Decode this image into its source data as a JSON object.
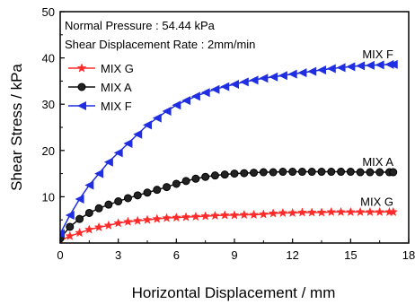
{
  "chart_data": {
    "type": "line",
    "xlabel": "Horizontal Displacement / mm",
    "ylabel": "Shear Stress / kPa",
    "xlim": [
      0,
      18
    ],
    "ylim": [
      0,
      50
    ],
    "xticks": [
      0,
      3,
      6,
      9,
      12,
      15,
      18
    ],
    "yticks": [
      10,
      20,
      30,
      40,
      50
    ],
    "annotations": [
      "Normal Pressure  : 54.44 kPa",
      "Shear Displacement Rate : 2mm/min"
    ],
    "legend_position": "upper-left",
    "grid": false,
    "series": [
      {
        "name": "MIX  G",
        "end_label": "MIX  G",
        "color": "#ff2a2a",
        "marker": "star",
        "x": [
          0,
          0.5,
          1,
          1.5,
          2,
          2.5,
          3,
          3.5,
          4,
          4.5,
          5,
          5.5,
          6,
          6.5,
          7,
          7.5,
          8,
          8.5,
          9,
          9.5,
          10,
          10.5,
          11,
          11.5,
          12,
          12.5,
          13,
          13.5,
          14,
          14.5,
          15,
          15.5,
          16,
          16.5,
          17,
          17.2
        ],
        "y": [
          0.5,
          1.5,
          2.2,
          2.9,
          3.4,
          3.8,
          4.3,
          4.6,
          4.8,
          5.0,
          5.2,
          5.4,
          5.5,
          5.6,
          5.7,
          5.8,
          5.9,
          6.0,
          6.0,
          6.1,
          6.1,
          6.2,
          6.4,
          6.5,
          6.5,
          6.6,
          6.6,
          6.6,
          6.7,
          6.7,
          6.7,
          6.7,
          6.7,
          6.7,
          6.7,
          6.7
        ]
      },
      {
        "name": "MIX  A",
        "end_label": "MIX  A",
        "color": "#111111",
        "marker": "circle",
        "x": [
          0,
          0.5,
          1,
          1.5,
          2,
          2.5,
          3,
          3.5,
          4,
          4.5,
          5,
          5.5,
          6,
          6.5,
          7,
          7.5,
          8,
          8.5,
          9,
          9.5,
          10,
          10.5,
          11,
          11.5,
          12,
          12.5,
          13,
          13.5,
          14,
          14.5,
          15,
          15.5,
          16,
          16.5,
          17,
          17.2
        ],
        "y": [
          1.0,
          3.5,
          5.2,
          6.5,
          7.5,
          8.3,
          9.0,
          9.7,
          10.3,
          10.9,
          11.5,
          12.1,
          12.8,
          13.4,
          13.9,
          14.3,
          14.6,
          14.8,
          15.0,
          15.1,
          15.2,
          15.3,
          15.3,
          15.4,
          15.4,
          15.4,
          15.4,
          15.4,
          15.4,
          15.4,
          15.4,
          15.3,
          15.3,
          15.3,
          15.3,
          15.3
        ]
      },
      {
        "name": "MIX  F",
        "end_label": "MIX  F",
        "color": "#1f2ee0",
        "marker": "triangle-left",
        "x": [
          0,
          0.5,
          1,
          1.5,
          2,
          2.5,
          3,
          3.5,
          4,
          4.5,
          5,
          5.5,
          6,
          6.5,
          7,
          7.5,
          8,
          8.5,
          9,
          9.5,
          10,
          10.5,
          11,
          11.5,
          12,
          12.5,
          13,
          13.5,
          14,
          14.5,
          15,
          15.5,
          16,
          16.5,
          17,
          17.2
        ],
        "y": [
          2.0,
          6.0,
          9.5,
          12.5,
          15.0,
          17.5,
          19.5,
          21.5,
          23.5,
          25.5,
          27.0,
          28.5,
          29.8,
          30.8,
          31.7,
          32.5,
          33.2,
          33.8,
          34.3,
          34.8,
          35.2,
          35.6,
          35.9,
          36.2,
          36.5,
          36.8,
          37.1,
          37.4,
          37.7,
          37.9,
          38.1,
          38.3,
          38.4,
          38.5,
          38.6,
          38.6
        ]
      }
    ]
  }
}
